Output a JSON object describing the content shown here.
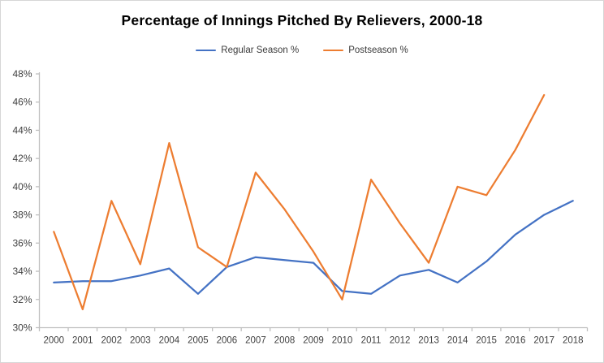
{
  "title": "Percentage of Innings Pitched By Relievers, 2000-18",
  "legend": {
    "items": [
      {
        "label": "Regular Season %",
        "color": "#4472C4"
      },
      {
        "label": "Postseason %",
        "color": "#ED7D31"
      }
    ]
  },
  "chart_data": {
    "type": "line",
    "title": "Percentage of Innings Pitched By Relievers, 2000-18",
    "categories": [
      "2000",
      "2001",
      "2002",
      "2003",
      "2004",
      "2005",
      "2006",
      "2007",
      "2008",
      "2009",
      "2010",
      "2011",
      "2012",
      "2013",
      "2014",
      "2015",
      "2016",
      "2017",
      "2018"
    ],
    "series": [
      {
        "name": "Regular Season %",
        "color": "#4472C4",
        "values": [
          33.2,
          33.3,
          33.3,
          33.7,
          34.2,
          32.4,
          34.3,
          35.0,
          34.8,
          34.6,
          32.6,
          32.4,
          33.7,
          34.1,
          33.2,
          34.7,
          36.6,
          38.0,
          39.0
        ]
      },
      {
        "name": "Postseason %",
        "color": "#ED7D31",
        "values": [
          36.8,
          31.3,
          39.0,
          34.5,
          43.1,
          35.7,
          34.3,
          41.0,
          38.4,
          35.4,
          32.0,
          40.5,
          37.4,
          34.6,
          40.0,
          39.4,
          42.6,
          46.5,
          null
        ]
      }
    ],
    "ylim": [
      30,
      48
    ],
    "ytick_step": 2,
    "y_tick_labels": [
      "30%",
      "32%",
      "34%",
      "36%",
      "38%",
      "40%",
      "42%",
      "44%",
      "46%",
      "48%"
    ],
    "grid": false,
    "legend_position": "top",
    "axis_color": "#BFBFBF",
    "tick_label_color": "#404040"
  }
}
